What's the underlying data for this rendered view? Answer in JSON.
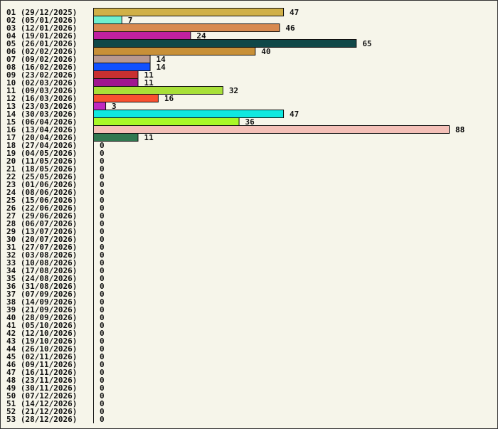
{
  "chart_data": {
    "type": "bar",
    "orientation": "horizontal",
    "title": "",
    "xlabel": "",
    "ylabel": "",
    "xlim": [
      0,
      88
    ],
    "grid": false,
    "categories": [
      "01 (29/12/2025)",
      "02 (05/01/2026)",
      "03 (12/01/2026)",
      "04 (19/01/2026)",
      "05 (26/01/2026)",
      "06 (02/02/2026)",
      "07 (09/02/2026)",
      "08 (16/02/2026)",
      "09 (23/02/2026)",
      "10 (02/03/2026)",
      "11 (09/03/2026)",
      "12 (16/03/2026)",
      "13 (23/03/2026)",
      "14 (30/03/2026)",
      "15 (06/04/2026)",
      "16 (13/04/2026)",
      "17 (20/04/2026)",
      "18 (27/04/2026)",
      "19 (04/05/2026)",
      "20 (11/05/2026)",
      "21 (18/05/2026)",
      "22 (25/05/2026)",
      "23 (01/06/2026)",
      "24 (08/06/2026)",
      "25 (15/06/2026)",
      "26 (22/06/2026)",
      "27 (29/06/2026)",
      "28 (06/07/2026)",
      "29 (13/07/2026)",
      "30 (20/07/2026)",
      "31 (27/07/2026)",
      "32 (03/08/2026)",
      "33 (10/08/2026)",
      "34 (17/08/2026)",
      "35 (24/08/2026)",
      "36 (31/08/2026)",
      "37 (07/09/2026)",
      "38 (14/09/2026)",
      "39 (21/09/2026)",
      "40 (28/09/2026)",
      "41 (05/10/2026)",
      "42 (12/10/2026)",
      "43 (19/10/2026)",
      "44 (26/10/2026)",
      "45 (02/11/2026)",
      "46 (09/11/2026)",
      "47 (16/11/2026)",
      "48 (23/11/2026)",
      "49 (30/11/2026)",
      "50 (07/12/2026)",
      "51 (14/12/2026)",
      "52 (21/12/2026)",
      "53 (28/12/2026)"
    ],
    "values": [
      47,
      7,
      46,
      24,
      65,
      40,
      14,
      14,
      11,
      11,
      32,
      16,
      3,
      47,
      36,
      88,
      11,
      0,
      0,
      0,
      0,
      0,
      0,
      0,
      0,
      0,
      0,
      0,
      0,
      0,
      0,
      0,
      0,
      0,
      0,
      0,
      0,
      0,
      0,
      0,
      0,
      0,
      0,
      0,
      0,
      0,
      0,
      0,
      0,
      0,
      0,
      0,
      0
    ],
    "colors": [
      "#d0b048",
      "#6ff0d0",
      "#d88a50",
      "#c020a0",
      "#104848",
      "#c89038",
      "#b89890",
      "#1050ff",
      "#c83030",
      "#a01890",
      "#a8e038",
      "#f85030",
      "#c028c0",
      "#10e8e0",
      "#a8f828",
      "#f4c0b8",
      "#307850"
    ]
  }
}
